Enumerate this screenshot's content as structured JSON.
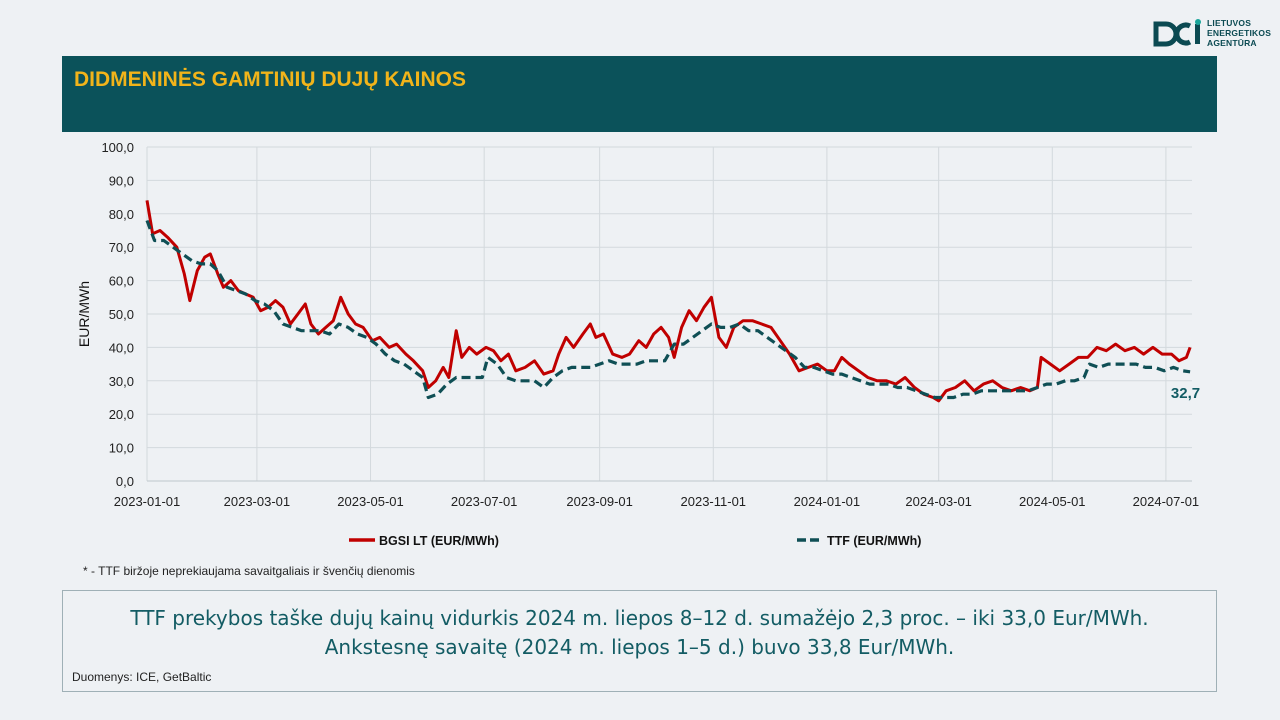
{
  "logo": {
    "line1": "LIETUVOS",
    "line2": "ENERGETIKOS",
    "line3": "AGENTŪRA"
  },
  "header": {
    "title": "DIDMENINĖS GAMTINIŲ DUJŲ KAINOS"
  },
  "footnote": "* - TTF biržoje neprekiaujama savaitgaliais ir švenčių dienomis",
  "summary": {
    "line1": "TTF prekybos taške dujų kainų vidurkis 2024 m. liepos 8–12 d. sumažėjo 2,3 proc. – iki 33,0 Eur/MWh.",
    "line2": "Ankstesnę savaitę (2024 m. liepos 1–5 d.) buvo 33,8 Eur/MWh."
  },
  "source": "Duomenys: ICE, GetBaltic",
  "colors": {
    "header_bg": "#0b525a",
    "title": "#f2b41a",
    "bgsi": "#c00000",
    "ttf": "#0f4f55"
  },
  "chart_data": {
    "type": "line",
    "ylabel": "EUR/MWh",
    "ylim": [
      0,
      100
    ],
    "yticks": [
      "0,0",
      "10,0",
      "20,0",
      "30,0",
      "40,0",
      "50,0",
      "60,0",
      "70,0",
      "80,0",
      "90,0",
      "100,0"
    ],
    "xticks": [
      "2023-01-01",
      "2023-03-01",
      "2023-05-01",
      "2023-07-01",
      "2023-09-01",
      "2023-11-01",
      "2024-01-01",
      "2024-03-01",
      "2024-05-01",
      "2024-07-01"
    ],
    "xlim": [
      "2023-01-01",
      "2024-07-15"
    ],
    "grid": true,
    "legend_position": "bottom",
    "annotation": {
      "text": "32,7",
      "series": "TTF (EUR/MWh)"
    },
    "series": [
      {
        "name": "BGSI LT (EUR/MWh)",
        "style": "solid",
        "color": "#c00000",
        "points": [
          [
            "2023-01-01",
            84
          ],
          [
            "2023-01-04",
            74
          ],
          [
            "2023-01-08",
            75
          ],
          [
            "2023-01-12",
            73
          ],
          [
            "2023-01-17",
            70
          ],
          [
            "2023-01-21",
            62
          ],
          [
            "2023-01-24",
            54
          ],
          [
            "2023-01-28",
            63
          ],
          [
            "2023-02-01",
            67
          ],
          [
            "2023-02-04",
            68
          ],
          [
            "2023-02-08",
            62
          ],
          [
            "2023-02-11",
            58
          ],
          [
            "2023-02-15",
            60
          ],
          [
            "2023-02-19",
            57
          ],
          [
            "2023-02-23",
            56
          ],
          [
            "2023-02-27",
            55
          ],
          [
            "2023-03-03",
            51
          ],
          [
            "2023-03-07",
            52
          ],
          [
            "2023-03-11",
            54
          ],
          [
            "2023-03-15",
            52
          ],
          [
            "2023-03-19",
            47
          ],
          [
            "2023-03-23",
            50
          ],
          [
            "2023-03-27",
            53
          ],
          [
            "2023-03-30",
            47
          ],
          [
            "2023-04-03",
            44
          ],
          [
            "2023-04-07",
            46
          ],
          [
            "2023-04-11",
            48
          ],
          [
            "2023-04-15",
            55
          ],
          [
            "2023-04-19",
            50
          ],
          [
            "2023-04-23",
            47
          ],
          [
            "2023-04-27",
            46
          ],
          [
            "2023-05-02",
            42
          ],
          [
            "2023-05-06",
            43
          ],
          [
            "2023-05-11",
            40
          ],
          [
            "2023-05-15",
            41
          ],
          [
            "2023-05-20",
            38
          ],
          [
            "2023-05-24",
            36
          ],
          [
            "2023-05-29",
            33
          ],
          [
            "2023-06-01",
            28
          ],
          [
            "2023-06-05",
            30
          ],
          [
            "2023-06-09",
            34
          ],
          [
            "2023-06-12",
            31
          ],
          [
            "2023-06-16",
            45
          ],
          [
            "2023-06-19",
            37
          ],
          [
            "2023-06-23",
            40
          ],
          [
            "2023-06-27",
            38
          ],
          [
            "2023-07-02",
            40
          ],
          [
            "2023-07-06",
            39
          ],
          [
            "2023-07-10",
            36
          ],
          [
            "2023-07-14",
            38
          ],
          [
            "2023-07-18",
            33
          ],
          [
            "2023-07-23",
            34
          ],
          [
            "2023-07-28",
            36
          ],
          [
            "2023-08-02",
            32
          ],
          [
            "2023-08-07",
            33
          ],
          [
            "2023-08-10",
            38
          ],
          [
            "2023-08-14",
            43
          ],
          [
            "2023-08-18",
            40
          ],
          [
            "2023-08-23",
            44
          ],
          [
            "2023-08-27",
            47
          ],
          [
            "2023-08-30",
            43
          ],
          [
            "2023-09-03",
            44
          ],
          [
            "2023-09-08",
            38
          ],
          [
            "2023-09-13",
            37
          ],
          [
            "2023-09-17",
            38
          ],
          [
            "2023-09-22",
            42
          ],
          [
            "2023-09-26",
            40
          ],
          [
            "2023-09-30",
            44
          ],
          [
            "2023-10-04",
            46
          ],
          [
            "2023-10-08",
            43
          ],
          [
            "2023-10-11",
            37
          ],
          [
            "2023-10-15",
            46
          ],
          [
            "2023-10-19",
            51
          ],
          [
            "2023-10-23",
            48
          ],
          [
            "2023-10-27",
            52
          ],
          [
            "2023-10-31",
            55
          ],
          [
            "2023-11-04",
            43
          ],
          [
            "2023-11-08",
            40
          ],
          [
            "2023-11-12",
            46
          ],
          [
            "2023-11-17",
            48
          ],
          [
            "2023-11-22",
            48
          ],
          [
            "2023-11-27",
            47
          ],
          [
            "2023-12-02",
            46
          ],
          [
            "2023-12-07",
            42
          ],
          [
            "2023-12-12",
            38
          ],
          [
            "2023-12-17",
            33
          ],
          [
            "2023-12-22",
            34
          ],
          [
            "2023-12-27",
            35
          ],
          [
            "2024-01-01",
            33
          ],
          [
            "2024-01-05",
            33
          ],
          [
            "2024-01-09",
            37
          ],
          [
            "2024-01-13",
            35
          ],
          [
            "2024-01-18",
            33
          ],
          [
            "2024-01-23",
            31
          ],
          [
            "2024-01-28",
            30
          ],
          [
            "2024-02-02",
            30
          ],
          [
            "2024-02-07",
            29
          ],
          [
            "2024-02-12",
            31
          ],
          [
            "2024-02-17",
            28
          ],
          [
            "2024-02-22",
            26
          ],
          [
            "2024-02-27",
            25
          ],
          [
            "2024-03-01",
            24
          ],
          [
            "2024-03-05",
            27
          ],
          [
            "2024-03-10",
            28
          ],
          [
            "2024-03-15",
            30
          ],
          [
            "2024-03-20",
            27
          ],
          [
            "2024-03-25",
            29
          ],
          [
            "2024-03-30",
            30
          ],
          [
            "2024-04-04",
            28
          ],
          [
            "2024-04-09",
            27
          ],
          [
            "2024-04-14",
            28
          ],
          [
            "2024-04-19",
            27
          ],
          [
            "2024-04-23",
            28
          ],
          [
            "2024-04-25",
            37
          ],
          [
            "2024-04-30",
            35
          ],
          [
            "2024-05-05",
            33
          ],
          [
            "2024-05-10",
            35
          ],
          [
            "2024-05-15",
            37
          ],
          [
            "2024-05-20",
            37
          ],
          [
            "2024-05-25",
            40
          ],
          [
            "2024-05-30",
            39
          ],
          [
            "2024-06-04",
            41
          ],
          [
            "2024-06-09",
            39
          ],
          [
            "2024-06-14",
            40
          ],
          [
            "2024-06-19",
            38
          ],
          [
            "2024-06-24",
            40
          ],
          [
            "2024-06-29",
            38
          ],
          [
            "2024-07-04",
            38
          ],
          [
            "2024-07-08",
            36
          ],
          [
            "2024-07-12",
            37
          ],
          [
            "2024-07-14",
            40
          ]
        ]
      },
      {
        "name": "TTF (EUR/MWh)",
        "style": "dashed",
        "color": "#0f4f55",
        "points": [
          [
            "2023-01-01",
            78
          ],
          [
            "2023-01-05",
            72
          ],
          [
            "2023-01-10",
            72
          ],
          [
            "2023-01-15",
            70
          ],
          [
            "2023-01-20",
            68
          ],
          [
            "2023-01-25",
            66
          ],
          [
            "2023-01-30",
            65
          ],
          [
            "2023-02-04",
            65
          ],
          [
            "2023-02-08",
            63
          ],
          [
            "2023-02-13",
            58
          ],
          [
            "2023-02-18",
            57
          ],
          [
            "2023-02-23",
            56
          ],
          [
            "2023-02-28",
            54
          ],
          [
            "2023-03-05",
            53
          ],
          [
            "2023-03-10",
            51
          ],
          [
            "2023-03-15",
            47
          ],
          [
            "2023-03-20",
            46
          ],
          [
            "2023-03-25",
            45
          ],
          [
            "2023-03-30",
            45
          ],
          [
            "2023-04-04",
            45
          ],
          [
            "2023-04-09",
            44
          ],
          [
            "2023-04-14",
            47
          ],
          [
            "2023-04-19",
            46
          ],
          [
            "2023-04-24",
            44
          ],
          [
            "2023-04-29",
            43
          ],
          [
            "2023-05-04",
            41
          ],
          [
            "2023-05-09",
            38
          ],
          [
            "2023-05-14",
            36
          ],
          [
            "2023-05-19",
            35
          ],
          [
            "2023-05-24",
            33
          ],
          [
            "2023-05-29",
            31
          ],
          [
            "2023-06-01",
            25
          ],
          [
            "2023-06-06",
            26
          ],
          [
            "2023-06-11",
            29
          ],
          [
            "2023-06-16",
            31
          ],
          [
            "2023-06-21",
            31
          ],
          [
            "2023-06-26",
            31
          ],
          [
            "2023-06-30",
            31
          ],
          [
            "2023-07-03",
            37
          ],
          [
            "2023-07-08",
            35
          ],
          [
            "2023-07-13",
            31
          ],
          [
            "2023-07-18",
            30
          ],
          [
            "2023-07-23",
            30
          ],
          [
            "2023-07-28",
            30
          ],
          [
            "2023-08-02",
            28
          ],
          [
            "2023-08-07",
            31
          ],
          [
            "2023-08-12",
            33
          ],
          [
            "2023-08-17",
            34
          ],
          [
            "2023-08-22",
            34
          ],
          [
            "2023-08-27",
            34
          ],
          [
            "2023-09-01",
            35
          ],
          [
            "2023-09-06",
            36
          ],
          [
            "2023-09-11",
            35
          ],
          [
            "2023-09-16",
            35
          ],
          [
            "2023-09-21",
            35
          ],
          [
            "2023-09-26",
            36
          ],
          [
            "2023-10-01",
            36
          ],
          [
            "2023-10-06",
            36
          ],
          [
            "2023-10-11",
            41
          ],
          [
            "2023-10-16",
            41
          ],
          [
            "2023-10-21",
            43
          ],
          [
            "2023-10-26",
            45
          ],
          [
            "2023-10-31",
            47
          ],
          [
            "2023-11-05",
            46
          ],
          [
            "2023-11-10",
            46
          ],
          [
            "2023-11-15",
            47
          ],
          [
            "2023-11-20",
            45
          ],
          [
            "2023-11-25",
            45
          ],
          [
            "2023-11-30",
            43
          ],
          [
            "2023-12-05",
            41
          ],
          [
            "2023-12-10",
            39
          ],
          [
            "2023-12-15",
            37
          ],
          [
            "2023-12-20",
            34
          ],
          [
            "2023-12-25",
            34
          ],
          [
            "2023-12-30",
            33
          ],
          [
            "2024-01-04",
            32
          ],
          [
            "2024-01-09",
            32
          ],
          [
            "2024-01-14",
            31
          ],
          [
            "2024-01-19",
            30
          ],
          [
            "2024-01-24",
            29
          ],
          [
            "2024-01-29",
            29
          ],
          [
            "2024-02-03",
            29
          ],
          [
            "2024-02-08",
            28
          ],
          [
            "2024-02-13",
            28
          ],
          [
            "2024-02-18",
            27
          ],
          [
            "2024-02-23",
            26
          ],
          [
            "2024-02-28",
            25
          ],
          [
            "2024-03-04",
            25
          ],
          [
            "2024-03-09",
            25
          ],
          [
            "2024-03-14",
            26
          ],
          [
            "2024-03-19",
            26
          ],
          [
            "2024-03-24",
            27
          ],
          [
            "2024-03-29",
            27
          ],
          [
            "2024-04-03",
            27
          ],
          [
            "2024-04-08",
            27
          ],
          [
            "2024-04-13",
            27
          ],
          [
            "2024-04-18",
            27
          ],
          [
            "2024-04-23",
            28
          ],
          [
            "2024-04-28",
            29
          ],
          [
            "2024-05-03",
            29
          ],
          [
            "2024-05-08",
            30
          ],
          [
            "2024-05-13",
            30
          ],
          [
            "2024-05-18",
            31
          ],
          [
            "2024-05-21",
            35
          ],
          [
            "2024-05-26",
            34
          ],
          [
            "2024-05-31",
            35
          ],
          [
            "2024-06-05",
            35
          ],
          [
            "2024-06-10",
            35
          ],
          [
            "2024-06-15",
            35
          ],
          [
            "2024-06-20",
            34
          ],
          [
            "2024-06-25",
            34
          ],
          [
            "2024-06-30",
            33
          ],
          [
            "2024-07-05",
            34
          ],
          [
            "2024-07-10",
            33
          ],
          [
            "2024-07-14",
            32.7
          ]
        ]
      }
    ]
  }
}
